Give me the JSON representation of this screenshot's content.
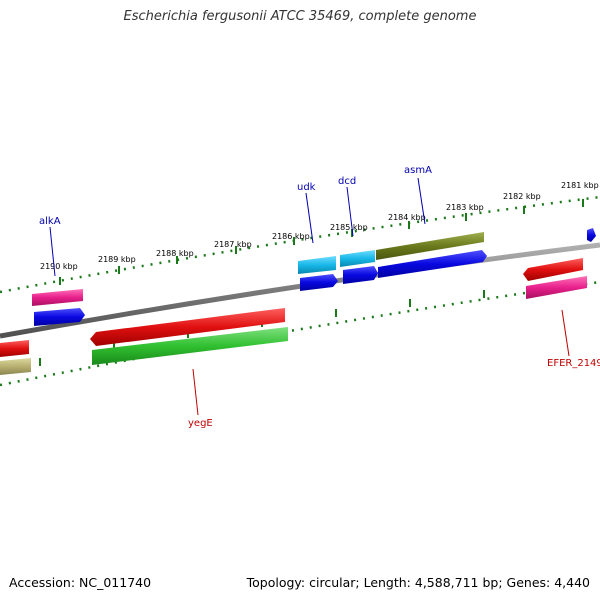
{
  "title": "Escherichia fergusonii ATCC 35469, complete genome",
  "footer": {
    "accession": "Accession: NC_011740",
    "summary": "Topology: circular; Length: 4,588,711 bp; Genes: 4,440"
  },
  "colors": {
    "backbone": "#7a7a7a",
    "ticks": "#1a7a1a",
    "label_blue": "#0000b0",
    "label_red": "#c00000"
  },
  "scale_labels": [
    "2181 kbp",
    "2182 kbp",
    "2183 kbp",
    "2184 kbp",
    "2185 kbp",
    "2186 kbp",
    "2187 kbp",
    "2188 kbp",
    "2189 kbp",
    "2190 kbp"
  ],
  "gene_labels": [
    {
      "text": "asmA",
      "color": "blue"
    },
    {
      "text": "dcd",
      "color": "blue"
    },
    {
      "text": "udk",
      "color": "blue"
    },
    {
      "text": "alkA",
      "color": "blue"
    },
    {
      "text": "yegE",
      "color": "red"
    },
    {
      "text": "EFER_2149",
      "color": "red"
    }
  ],
  "feature_colors": {
    "red": "#e01010",
    "green": "#30c030",
    "blue": "#0808e0",
    "cyan": "#18b8e8",
    "magenta": "#e8208c",
    "olive": "#6b7a1c",
    "khaki": "#b8b070"
  }
}
